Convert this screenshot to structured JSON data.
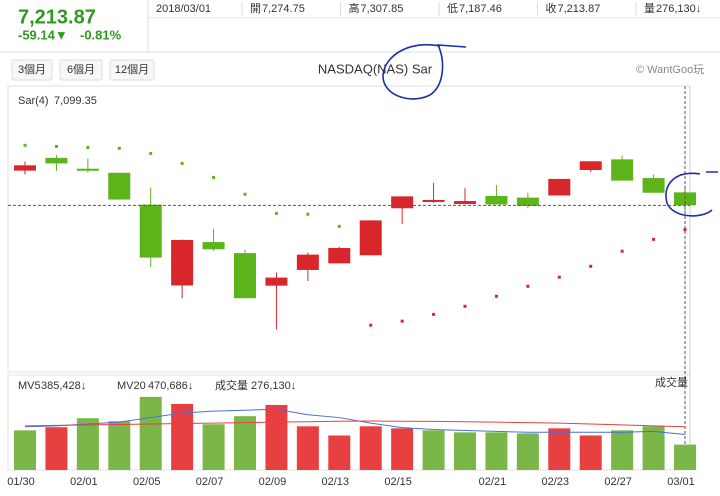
{
  "header": {
    "price": "7,213.87",
    "change": "-59.14▼",
    "change_pct": "-0.81%",
    "date": "2018/03/01",
    "quote": [
      {
        "label": "開",
        "value": "7,274.75"
      },
      {
        "label": "高",
        "value": "7,307.85"
      },
      {
        "label": "低",
        "value": "7,187.46"
      },
      {
        "label": "收",
        "value": "7,213.87"
      },
      {
        "label": "量",
        "value": "276,130↓"
      }
    ]
  },
  "toolbar": {
    "buttons": [
      "3個月",
      "6個月",
      "12個月"
    ],
    "credit": "© WantGoo玩"
  },
  "chart_data": [
    {
      "type": "candlestick",
      "title": "NASDAQ(NAS) Sar",
      "open": [
        7377,
        7437,
        7386,
        7367,
        7217,
        6837,
        7041,
        6989,
        6836,
        6910,
        6941,
        6979,
        7200,
        7235,
        7220,
        7258,
        7250,
        7260,
        7380,
        7430,
        7342,
        7274.75
      ],
      "high": [
        7420,
        7450,
        7434,
        7367,
        7297,
        7053,
        7103,
        7005,
        6898,
        6992,
        7019,
        7143,
        7256,
        7319,
        7295,
        7310,
        7273,
        7338,
        7421,
        7447,
        7359,
        7307.85
      ],
      "low": [
        7359,
        7375,
        7368,
        7240,
        6924,
        6777,
        6999,
        6777,
        6630,
        6858,
        6941,
        6979,
        7126,
        7225,
        7220,
        7218,
        7200,
        7260,
        7370,
        7330,
        7273,
        7187.46
      ],
      "close": [
        7402,
        7411,
        7385,
        7241,
        6968,
        7051,
        7007,
        6777,
        6874,
        6982,
        7013,
        7143,
        7256,
        7239,
        7234,
        7218,
        7211,
        7338,
        7421,
        7330,
        7273,
        7213.87
      ],
      "up_color": "#d8262b",
      "down_color": "#5cb31a",
      "ylim": [
        6430,
        7775
      ],
      "sar": {
        "name": "Sar(4)",
        "value_label": "7,099.35",
        "values": [
          7496,
          7491,
          7486,
          7482,
          7458,
          7411,
          7345,
          7266,
          7176,
          7172,
          7115,
          6650,
          6669,
          6701,
          6739,
          6786,
          6833,
          6876,
          6927,
          6998,
          7054,
          7099.35
        ]
      }
    },
    {
      "type": "bar",
      "title": "成交量",
      "value_label": "276,130↓",
      "categories": [
        "01/30",
        null,
        "02/01",
        null,
        "02/05",
        null,
        "02/07",
        null,
        "02/09",
        null,
        "02/13",
        null,
        "02/15",
        null,
        null,
        "02/21",
        null,
        "02/23",
        null,
        "02/27",
        null,
        "03/01"
      ],
      "values": [
        431000,
        465000,
        563000,
        530000,
        795000,
        718000,
        497000,
        585000,
        707000,
        475000,
        375000,
        475000,
        453000,
        431000,
        409000,
        409000,
        398000,
        453000,
        375000,
        431000,
        475000,
        276130
      ],
      "colors": [
        "#7ab648",
        "#e84040",
        "#7ab648",
        "#7ab648",
        "#7ab648",
        "#e84040",
        "#7ab648",
        "#7ab648",
        "#e84040",
        "#e84040",
        "#e84040",
        "#e84040",
        "#e84040",
        "#7ab648",
        "#7ab648",
        "#7ab648",
        "#7ab648",
        "#e84040",
        "#e84040",
        "#7ab648",
        "#7ab648",
        "#7ab648"
      ],
      "ylim": [
        0,
        1000000
      ],
      "series": [
        {
          "name": "MV5",
          "color": "#4a6fd8",
          "value_label": "385,428↓",
          "values": [
            470000,
            480000,
            500000,
            520000,
            570000,
            620000,
            640000,
            650000,
            660000,
            600000,
            570000,
            510000,
            460000,
            440000,
            430000,
            420000,
            410000,
            410000,
            410000,
            410000,
            420000,
            385428
          ]
        },
        {
          "name": "MV20",
          "color": "#e84040",
          "value_label": "470,686↓",
          "values": [
            480000,
            485000,
            490000,
            495000,
            500000,
            505000,
            510000,
            515000,
            520000,
            525000,
            530000,
            532000,
            530000,
            528000,
            525000,
            520000,
            515000,
            510000,
            500000,
            490000,
            480000,
            470686
          ]
        }
      ]
    }
  ]
}
